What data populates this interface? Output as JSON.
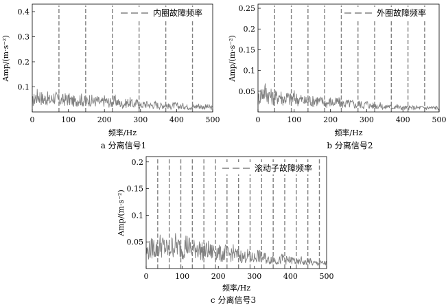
{
  "figure": {
    "panels": [
      {
        "caption": "a 分离信号1",
        "legend": "内圈故障频率"
      },
      {
        "caption": "b 分离信号2",
        "legend": "外圈故障频率"
      },
      {
        "caption": "c 分离信号3",
        "legend": "滚动子故障频率"
      }
    ]
  },
  "colors": {
    "spectrum": "#808080",
    "fault_line": "#808080",
    "axis": "#000000"
  },
  "chart_data": [
    {
      "type": "line",
      "caption": "a 分离信号1",
      "xlabel": "频率/Hz",
      "ylabel": "Amp/(m·s⁻²)",
      "xlim": [
        0,
        500
      ],
      "ylim": [
        0,
        0.43
      ],
      "xticks": [
        0,
        100,
        200,
        300,
        400,
        500
      ],
      "yticks": [
        0.1,
        0.2,
        0.3,
        0.4
      ],
      "legend": "内圈故障频率",
      "legend_position": "top-right",
      "fault_lines": [
        74,
        148,
        222,
        296,
        370,
        444
      ],
      "series": [
        {
          "x": [
            0,
            10,
            20,
            30,
            40,
            50,
            60,
            70,
            80,
            90,
            100,
            110,
            120,
            130,
            140,
            150,
            160,
            170,
            180,
            190,
            200,
            210,
            220,
            230,
            240,
            250,
            260,
            270,
            280,
            290,
            300,
            310,
            320,
            330,
            340,
            350,
            360,
            370,
            380,
            390,
            400,
            410,
            420,
            430,
            440,
            450,
            460,
            470,
            480,
            490,
            500
          ],
          "y": [
            0.04,
            0.06,
            0.065,
            0.05,
            0.055,
            0.045,
            0.06,
            0.05,
            0.045,
            0.05,
            0.05,
            0.045,
            0.04,
            0.055,
            0.045,
            0.04,
            0.05,
            0.04,
            0.045,
            0.035,
            0.045,
            0.04,
            0.035,
            0.045,
            0.035,
            0.03,
            0.035,
            0.04,
            0.03,
            0.035,
            0.025,
            0.03,
            0.03,
            0.025,
            0.03,
            0.025,
            0.025,
            0.03,
            0.02,
            0.025,
            0.025,
            0.02,
            0.025,
            0.02,
            0.02,
            0.02,
            0.025,
            0.02,
            0.02,
            0.02,
            0.015
          ]
        }
      ]
    },
    {
      "type": "line",
      "caption": "b 分离信号2",
      "xlabel": "频率/Hz",
      "ylabel": "Amp/(m·s⁻²)",
      "xlim": [
        0,
        500
      ],
      "ylim": [
        0,
        0.26
      ],
      "xticks": [
        0,
        100,
        200,
        300,
        400,
        500
      ],
      "yticks": [
        0.05,
        0.1,
        0.15,
        0.2,
        0.25
      ],
      "legend": "外圈故障频率",
      "legend_position": "top-right",
      "fault_lines": [
        46,
        92,
        138,
        184,
        230,
        276,
        322,
        368,
        414,
        460
      ],
      "series": [
        {
          "x": [
            0,
            10,
            20,
            30,
            40,
            50,
            60,
            70,
            80,
            90,
            100,
            110,
            120,
            130,
            140,
            150,
            160,
            170,
            180,
            190,
            200,
            210,
            220,
            230,
            240,
            250,
            260,
            270,
            280,
            290,
            300,
            310,
            320,
            330,
            340,
            350,
            360,
            370,
            380,
            390,
            400,
            410,
            420,
            430,
            440,
            450,
            460,
            470,
            480,
            490,
            500
          ],
          "y": [
            0.03,
            0.045,
            0.05,
            0.04,
            0.035,
            0.035,
            0.04,
            0.03,
            0.035,
            0.03,
            0.035,
            0.03,
            0.03,
            0.025,
            0.03,
            0.025,
            0.03,
            0.025,
            0.025,
            0.02,
            0.025,
            0.02,
            0.025,
            0.02,
            0.02,
            0.02,
            0.02,
            0.015,
            0.02,
            0.015,
            0.02,
            0.015,
            0.015,
            0.015,
            0.015,
            0.01,
            0.015,
            0.01,
            0.015,
            0.01,
            0.01,
            0.01,
            0.01,
            0.01,
            0.01,
            0.01,
            0.01,
            0.01,
            0.01,
            0.01,
            0.01
          ]
        }
      ]
    },
    {
      "type": "line",
      "caption": "c 分离信号3",
      "xlabel": "频率/Hz",
      "ylabel": "Amp/(m·s⁻²)",
      "xlim": [
        0,
        500
      ],
      "ylim": [
        0,
        0.21
      ],
      "xticks": [
        0,
        100,
        200,
        300,
        400,
        500
      ],
      "yticks": [
        0.05,
        0.1,
        0.15,
        0.2
      ],
      "legend": "滚动子故障频率",
      "legend_position": "top-right",
      "fault_lines": [
        32,
        64,
        96,
        128,
        160,
        192,
        224,
        256,
        288,
        320,
        352,
        384,
        416,
        448,
        480
      ],
      "series": [
        {
          "x": [
            0,
            10,
            20,
            30,
            40,
            50,
            60,
            70,
            80,
            90,
            100,
            110,
            120,
            130,
            140,
            150,
            160,
            170,
            180,
            190,
            200,
            210,
            220,
            230,
            240,
            250,
            260,
            270,
            280,
            290,
            300,
            310,
            320,
            330,
            340,
            350,
            360,
            370,
            380,
            390,
            400,
            410,
            420,
            430,
            440,
            450,
            460,
            470,
            480,
            490,
            500
          ],
          "y": [
            0.03,
            0.035,
            0.04,
            0.035,
            0.045,
            0.04,
            0.035,
            0.04,
            0.045,
            0.04,
            0.035,
            0.045,
            0.04,
            0.035,
            0.04,
            0.035,
            0.03,
            0.035,
            0.03,
            0.035,
            0.03,
            0.025,
            0.03,
            0.025,
            0.03,
            0.025,
            0.025,
            0.02,
            0.025,
            0.02,
            0.02,
            0.025,
            0.02,
            0.02,
            0.015,
            0.02,
            0.015,
            0.015,
            0.02,
            0.015,
            0.015,
            0.015,
            0.01,
            0.015,
            0.01,
            0.015,
            0.01,
            0.01,
            0.01,
            0.01,
            0.01
          ]
        }
      ]
    }
  ]
}
